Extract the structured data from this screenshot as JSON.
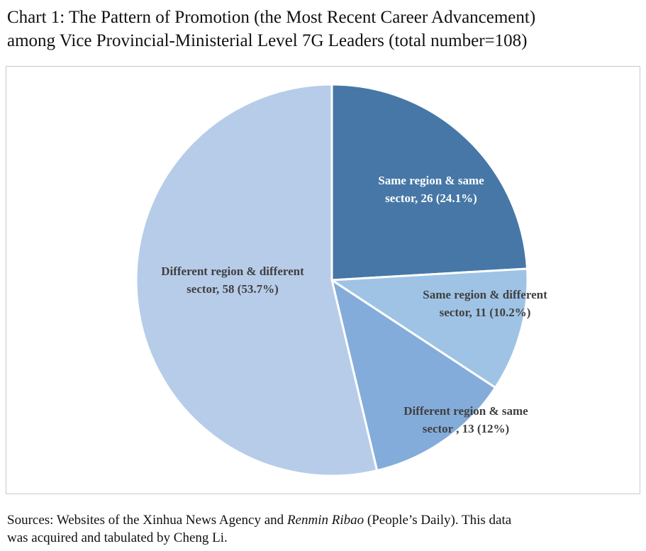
{
  "title_lines": [
    "Chart 1: The Pattern of Promotion (the Most Recent Career Advancement)",
    "among Vice Provincial-Ministerial Level 7G Leaders (total number=108)"
  ],
  "chart_data": {
    "type": "pie",
    "title": "The Pattern of Promotion (the Most Recent Career Advancement) among Vice Provincial-Ministerial Level 7G Leaders (total number=108)",
    "total": 108,
    "slices": [
      {
        "name": "Same region & same sector",
        "value": 26,
        "percent": 24.1,
        "color": "#4677a7",
        "label_color": "#ffffff",
        "label_lines": [
          "Same region & same",
          "sector, 26 (24.1%)"
        ]
      },
      {
        "name": "Same region & different sector",
        "value": 11,
        "percent": 10.2,
        "color": "#9fc3e5",
        "label_color": "#404040",
        "label_lines": [
          "Same region & different",
          "sector, 11 (10.2%)"
        ]
      },
      {
        "name": "Different region & same sector",
        "value": 13,
        "percent": 12,
        "color": "#84acda",
        "label_color": "#404040",
        "label_lines": [
          "Different region & same",
          "sector , 13 (12%)"
        ]
      },
      {
        "name": "Different region & different sector",
        "value": 58,
        "percent": 53.7,
        "color": "#b7cce8",
        "label_color": "#404040",
        "label_lines": [
          "Different region & different",
          "sector, 58 (53.7%)"
        ]
      }
    ]
  },
  "source": {
    "prefix": "Sources: Websites of the Xinhua News Agency and ",
    "italic": "Renmin Ribao",
    "suffix": " (People’s Daily). This data",
    "line2": "was acquired and tabulated by Cheng Li."
  }
}
